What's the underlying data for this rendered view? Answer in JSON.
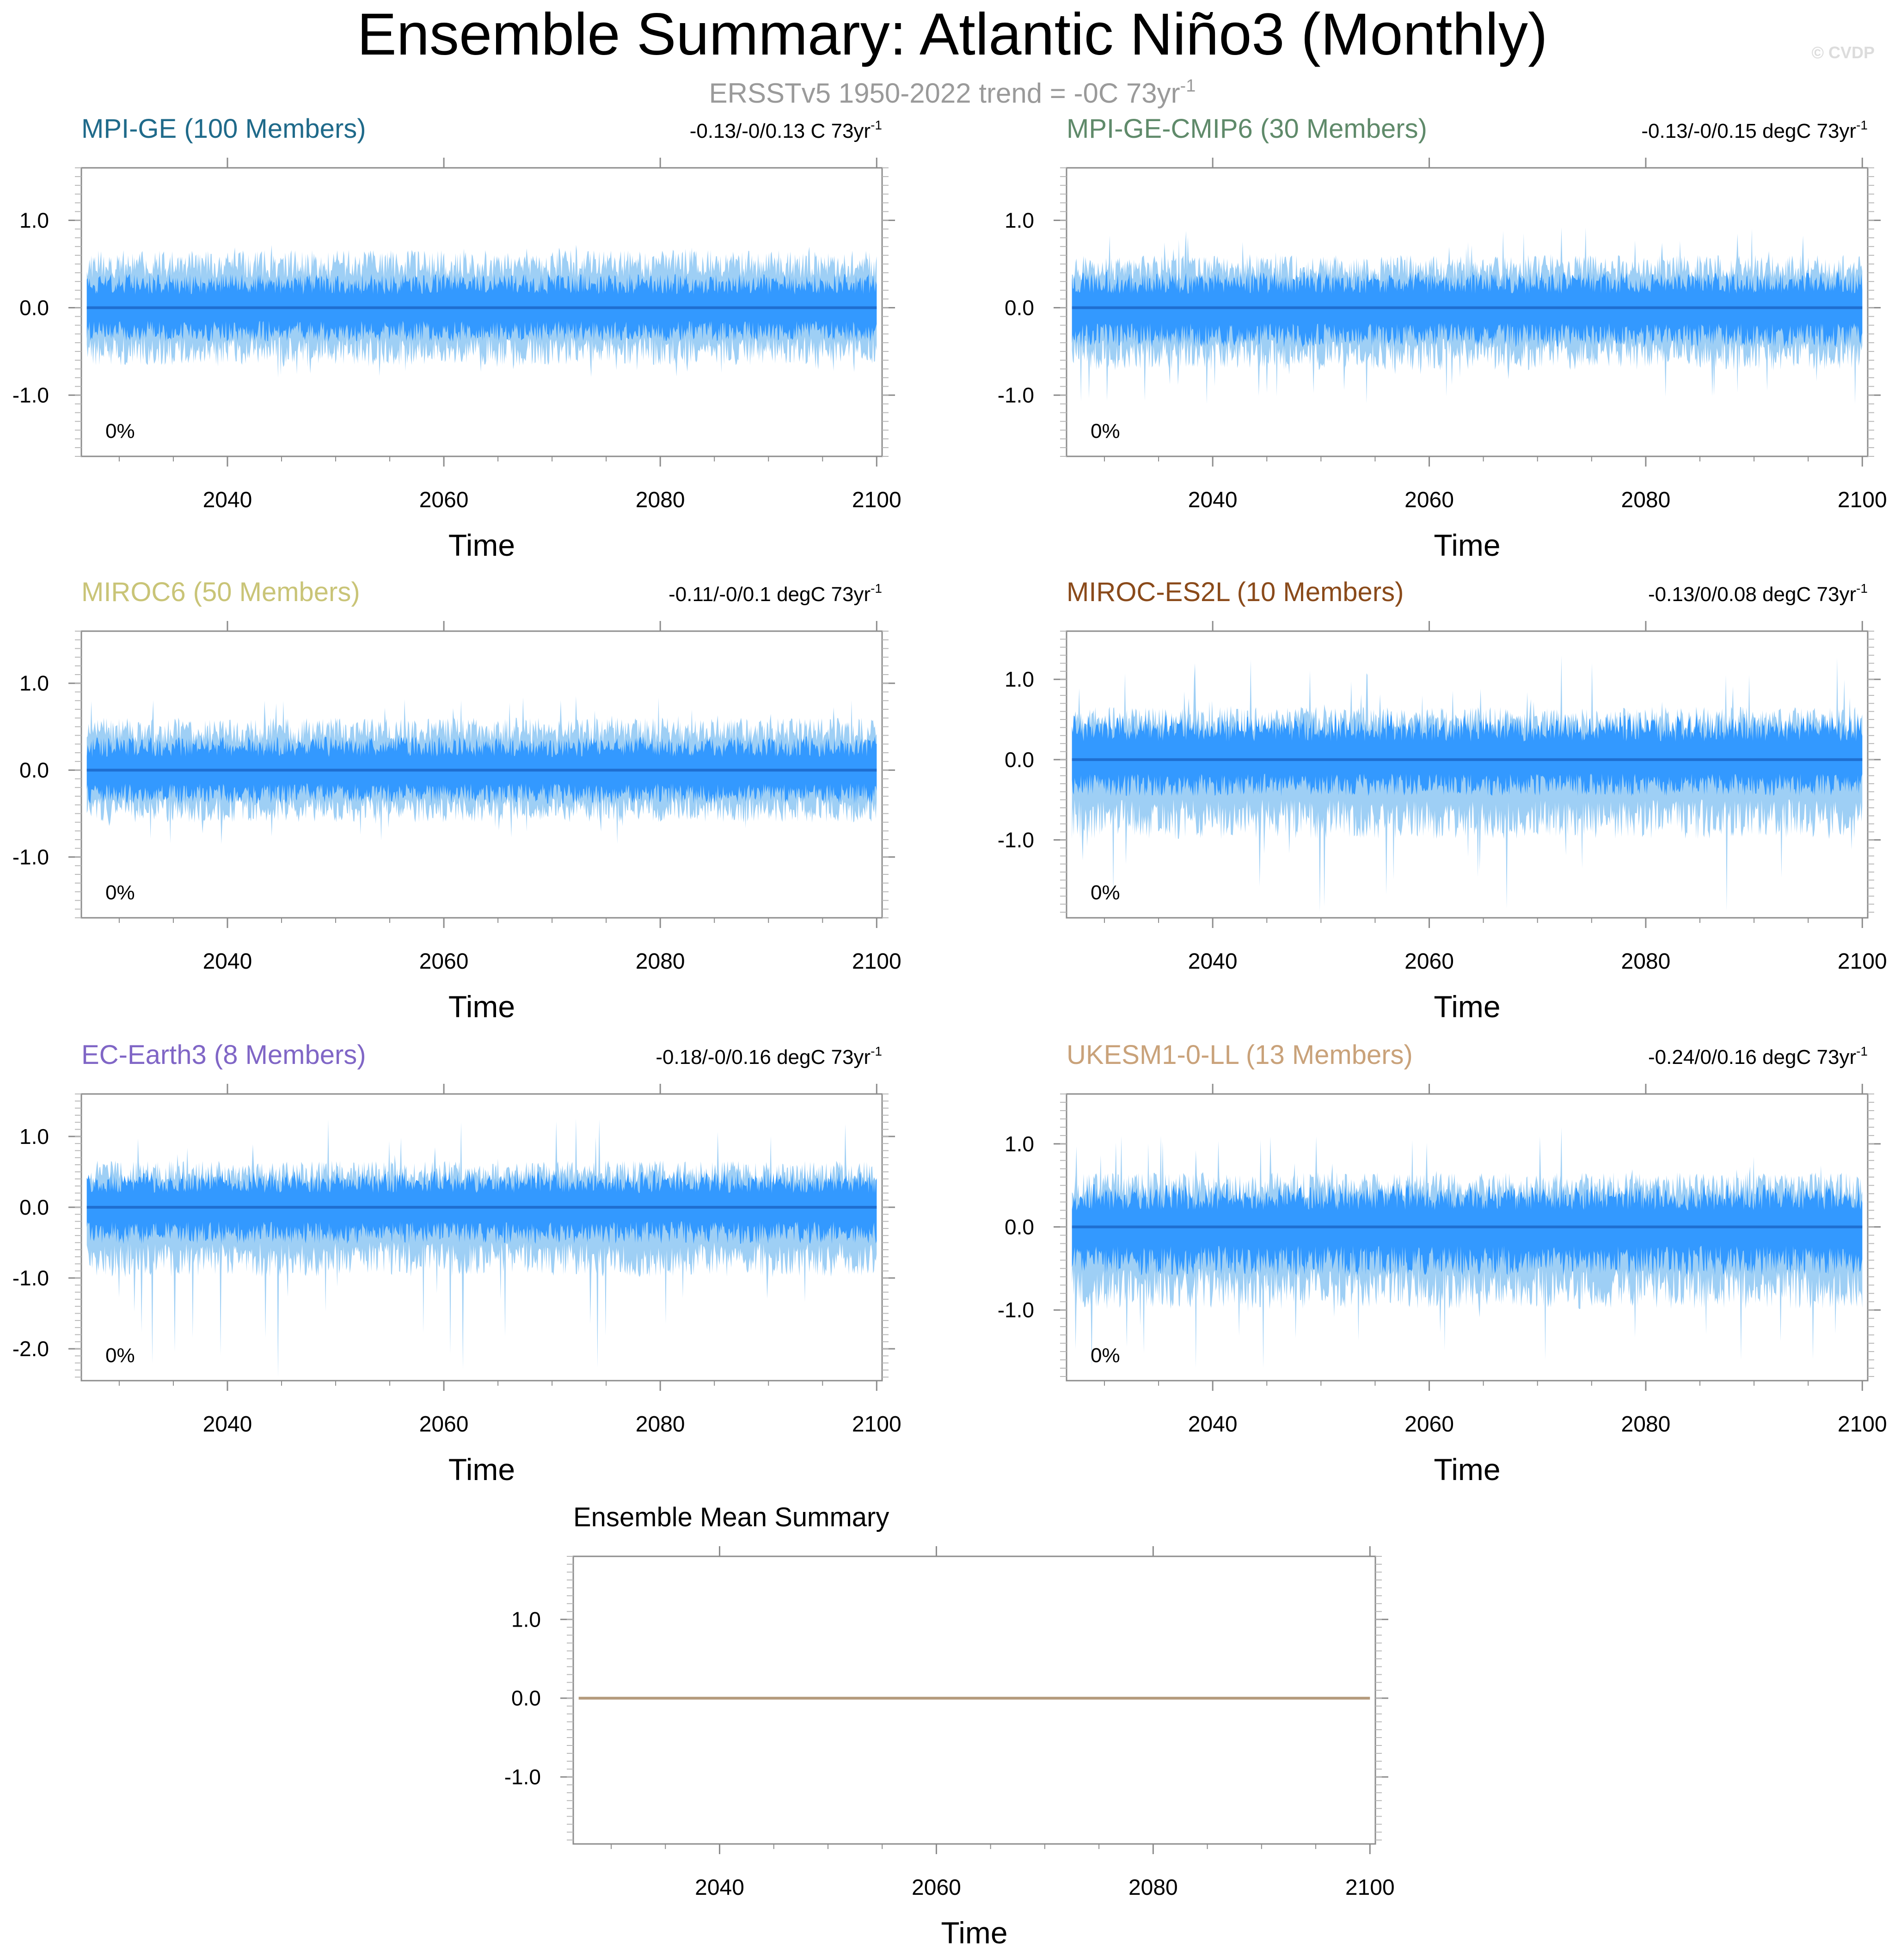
{
  "figure": {
    "title": "Ensemble Summary: Atlantic Niño3 (Monthly)",
    "subtitle": "ERSSTv5 1950-2022 trend = -0C 73yr",
    "subtitle_sup": "-1",
    "watermark": "© CVDP"
  },
  "colors": {
    "band_outer": "#9ecff5",
    "band_inner": "#3399ff",
    "mean_line": "#1f6fd1",
    "frame": "#8c8c8c",
    "mean_summary_line": "#b49a7c"
  },
  "chart_data": [
    {
      "type": "area",
      "label": "MPI-GE (100 Members)",
      "label_color": "#1f6a8a",
      "trend_text": "-0.13/-0/0.13 C 73yr",
      "trend_sup": "-1",
      "pct_text": "0%",
      "xlabel": "Time",
      "xlim": [
        2026.5,
        2100.5
      ],
      "x_ticks": [
        2040,
        2060,
        2080,
        2100
      ],
      "ylim": [
        -1.7,
        1.6
      ],
      "y_ticks": [
        1.0,
        0.0,
        -1.0
      ],
      "y_tick_labels": [
        "1.0",
        "0.0",
        "-1.0"
      ],
      "series": [
        {
          "name": "min/max envelope",
          "low_typical": -0.6,
          "high_typical": 0.6,
          "low_extreme": -0.8,
          "high_extreme": 0.72
        },
        {
          "name": "10th-90th percentile",
          "low_typical": -0.3,
          "high_typical": 0.3
        },
        {
          "name": "ensemble mean",
          "value": 0.0
        }
      ],
      "seed": 11
    },
    {
      "type": "area",
      "label": "MPI-GE-CMIP6 (30 Members)",
      "label_color": "#5f8a6a",
      "trend_text": "-0.13/-0/0.15 degC 73yr",
      "trend_sup": "-1",
      "pct_text": "0%",
      "xlabel": "Time",
      "xlim": [
        2026.5,
        2100.5
      ],
      "x_ticks": [
        2040,
        2060,
        2080,
        2100
      ],
      "ylim": [
        -1.7,
        1.6
      ],
      "y_ticks": [
        1.0,
        0.0,
        -1.0
      ],
      "y_tick_labels": [
        "1.0",
        "0.0",
        "-1.0"
      ],
      "series": [
        {
          "name": "min/max envelope",
          "low_typical": -0.65,
          "high_typical": 0.55,
          "low_extreme": -1.1,
          "high_extreme": 0.92
        },
        {
          "name": "10th-90th percentile",
          "low_typical": -0.35,
          "high_typical": 0.32
        },
        {
          "name": "ensemble mean",
          "value": 0.0
        }
      ],
      "seed": 23
    },
    {
      "type": "area",
      "label": "MIROC6 (50 Members)",
      "label_color": "#c9c477",
      "trend_text": "-0.11/-0/0.1 degC 73yr",
      "trend_sup": "-1",
      "pct_text": "0%",
      "xlabel": "Time",
      "xlim": [
        2026.5,
        2100.5
      ],
      "x_ticks": [
        2040,
        2060,
        2080,
        2100
      ],
      "ylim": [
        -1.7,
        1.6
      ],
      "y_ticks": [
        1.0,
        0.0,
        -1.0
      ],
      "y_tick_labels": [
        "1.0",
        "0.0",
        "-1.0"
      ],
      "series": [
        {
          "name": "min/max envelope",
          "low_typical": -0.55,
          "high_typical": 0.55,
          "low_extreme": -0.85,
          "high_extreme": 0.85
        },
        {
          "name": "10th-90th percentile",
          "low_typical": -0.3,
          "high_typical": 0.3
        },
        {
          "name": "ensemble mean",
          "value": 0.0
        }
      ],
      "seed": 37
    },
    {
      "type": "area",
      "label": "MIROC-ES2L (10 Members)",
      "label_color": "#8a4a1a",
      "trend_text": "-0.13/0/0.08 degC 73yr",
      "trend_sup": "-1",
      "pct_text": "0%",
      "xlabel": "Time",
      "xlim": [
        2026.5,
        2100.5
      ],
      "x_ticks": [
        2040,
        2060,
        2080,
        2100
      ],
      "ylim": [
        -1.97,
        1.6
      ],
      "y_ticks": [
        1.0,
        0.0,
        -1.0
      ],
      "y_tick_labels": [
        "1.0",
        "0.0",
        "-1.0"
      ],
      "series": [
        {
          "name": "min/max envelope",
          "low_typical": -0.9,
          "high_typical": 0.6,
          "low_extreme": -1.9,
          "high_extreme": 1.3
        },
        {
          "name": "10th-90th percentile",
          "low_typical": -0.35,
          "high_typical": 0.45
        },
        {
          "name": "ensemble mean",
          "value": 0.0
        }
      ],
      "seed": 41
    },
    {
      "type": "area",
      "label": "EC-Earth3 (8 Members)",
      "label_color": "#8066c6",
      "trend_text": "-0.18/-0/0.16 degC 73yr",
      "trend_sup": "-1",
      "pct_text": "0%",
      "xlabel": "Time",
      "xlim": [
        2026.5,
        2100.5
      ],
      "x_ticks": [
        2040,
        2060,
        2080,
        2100
      ],
      "ylim": [
        -2.45,
        1.6
      ],
      "y_ticks": [
        1.0,
        0.0,
        -1.0,
        -2.0
      ],
      "y_tick_labels": [
        "1.0",
        "0.0",
        "-1.0",
        "-2.0"
      ],
      "series": [
        {
          "name": "min/max envelope",
          "low_typical": -0.9,
          "high_typical": 0.6,
          "low_extreme": -2.4,
          "high_extreme": 1.25
        },
        {
          "name": "10th-90th percentile",
          "low_typical": -0.4,
          "high_typical": 0.4
        },
        {
          "name": "ensemble mean",
          "value": 0.0
        }
      ],
      "seed": 53
    },
    {
      "type": "area",
      "label": "UKESM1-0-LL (13 Members)",
      "label_color": "#c9a27a",
      "trend_text": "-0.24/0/0.16 degC 73yr",
      "trend_sup": "-1",
      "pct_text": "0%",
      "xlabel": "Time",
      "xlim": [
        2026.5,
        2100.5
      ],
      "x_ticks": [
        2040,
        2060,
        2080,
        2100
      ],
      "ylim": [
        -1.85,
        1.6
      ],
      "y_ticks": [
        1.0,
        0.0,
        -1.0
      ],
      "y_tick_labels": [
        "1.0",
        "0.0",
        "-1.0"
      ],
      "series": [
        {
          "name": "min/max envelope",
          "low_typical": -0.9,
          "high_typical": 0.6,
          "low_extreme": -1.7,
          "high_extreme": 1.2
        },
        {
          "name": "10th-90th percentile",
          "low_typical": -0.45,
          "high_typical": 0.4
        },
        {
          "name": "ensemble mean",
          "value": 0.0
        }
      ],
      "seed": 67
    },
    {
      "type": "line",
      "label": "Ensemble Mean Summary",
      "label_color": "#000000",
      "xlabel": "Time",
      "xlim": [
        2026.5,
        2100.5
      ],
      "x_ticks": [
        2040,
        2060,
        2080,
        2100
      ],
      "ylim": [
        -1.85,
        1.8
      ],
      "y_ticks": [
        1.0,
        0.0,
        -1.0
      ],
      "y_tick_labels": [
        "1.0",
        "0.0",
        "-1.0"
      ],
      "series": [
        {
          "name": "ensemble means (all models)",
          "x": [
            2027,
            2100
          ],
          "values": [
            0.0,
            0.0
          ]
        }
      ]
    }
  ]
}
